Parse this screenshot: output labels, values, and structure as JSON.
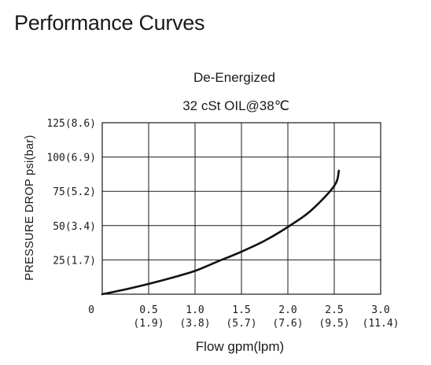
{
  "page_title": "Performance Curves",
  "chart_data": {
    "type": "line",
    "title": "De-Energized",
    "subtitle": "32 cSt OIL@38℃",
    "xlabel": "Flow gpm(lpm)",
    "ylabel": "PRESSURE DROP psi(bar)",
    "xlim": [
      0,
      3.0
    ],
    "ylim": [
      0,
      125
    ],
    "grid": true,
    "x_ticks": [
      {
        "value": 0,
        "label": "0",
        "sub": ""
      },
      {
        "value": 0.5,
        "label": "0.5",
        "sub": "(1.9)"
      },
      {
        "value": 1.0,
        "label": "1.0",
        "sub": "(3.8)"
      },
      {
        "value": 1.5,
        "label": "1.5",
        "sub": "(5.7)"
      },
      {
        "value": 2.0,
        "label": "2.0",
        "sub": "(7.6)"
      },
      {
        "value": 2.5,
        "label": "2.5",
        "sub": "(9.5)"
      },
      {
        "value": 3.0,
        "label": "3.0",
        "sub": "(11.4)"
      }
    ],
    "y_ticks": [
      {
        "value": 25,
        "label": "25(1.7)"
      },
      {
        "value": 50,
        "label": "50(3.4)"
      },
      {
        "value": 75,
        "label": "75(5.2)"
      },
      {
        "value": 100,
        "label": "100(6.9)"
      },
      {
        "value": 125,
        "label": "125(8.6)"
      }
    ],
    "series": [
      {
        "color": "#111111",
        "x": [
          0,
          0.25,
          0.5,
          0.75,
          1.0,
          1.25,
          1.5,
          1.75,
          2.0,
          2.25,
          2.5,
          2.55
        ],
        "y": [
          0,
          3.5,
          7.5,
          12,
          17,
          24,
          31,
          39,
          49,
          61,
          79,
          90
        ]
      }
    ]
  }
}
